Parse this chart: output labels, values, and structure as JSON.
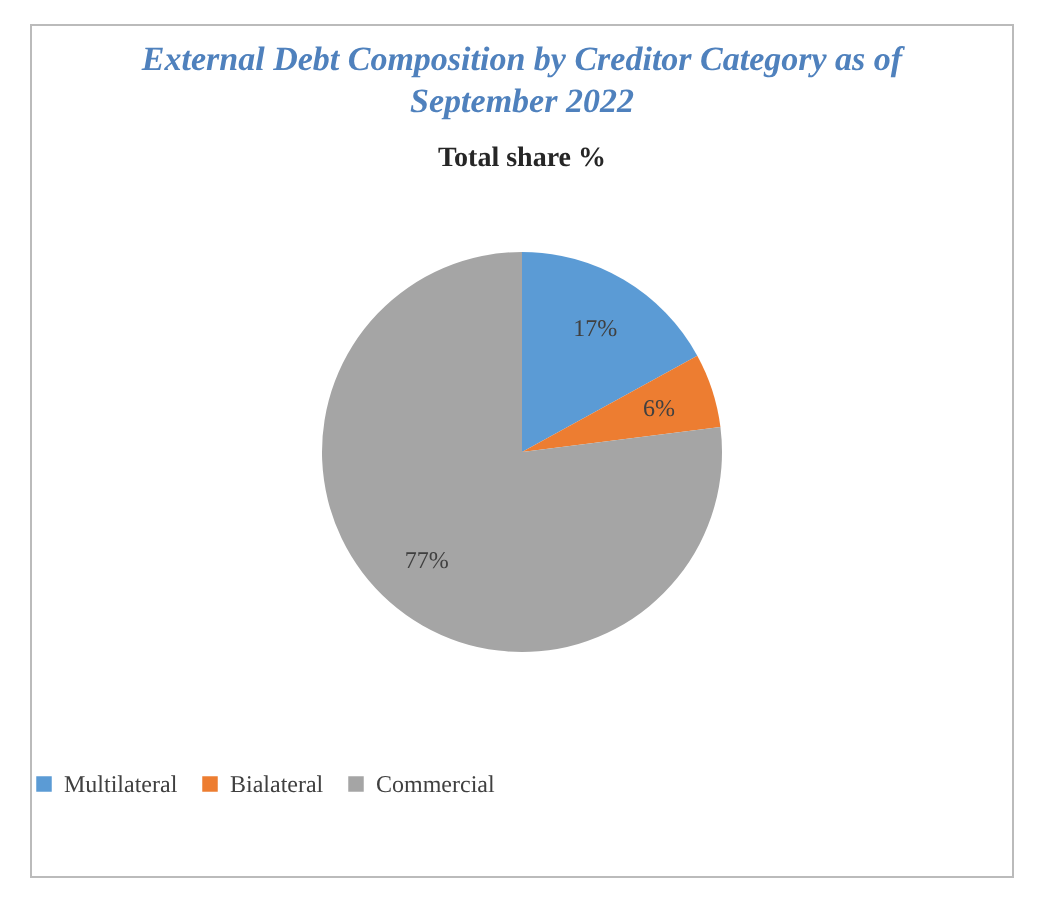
{
  "chart_data": {
    "type": "pie",
    "title": "External Debt Composition by Creditor Category as of September 2022",
    "subtitle": "Total share %",
    "categories": [
      "Multilateral",
      "Bialateral",
      "Commercial"
    ],
    "values": [
      17,
      6,
      77
    ],
    "colors": [
      "#5b9bd5",
      "#ed7d31",
      "#a5a5a5"
    ],
    "value_labels": [
      "17%",
      "6%",
      "77%"
    ],
    "legend": "bottom"
  }
}
